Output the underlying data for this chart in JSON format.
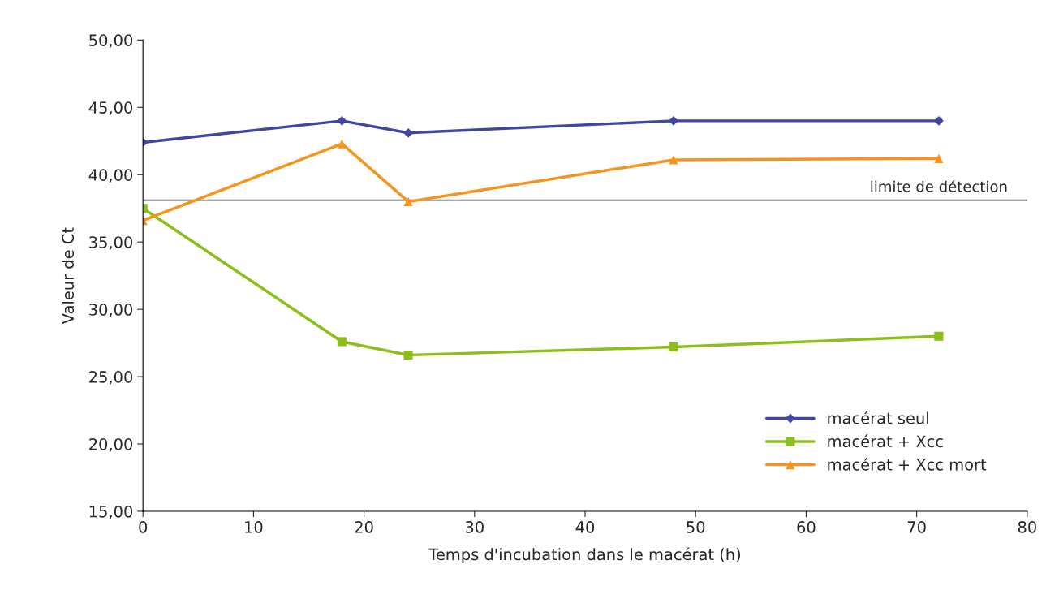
{
  "chart_data": {
    "type": "line",
    "xlabel": "Temps d'incubation dans le macérat (h)",
    "ylabel": "Valeur de Ct",
    "x": [
      0,
      18,
      24,
      48,
      72
    ],
    "series": [
      {
        "name": "macérat seul",
        "color": "#3f48a0",
        "marker": "diamond",
        "values": [
          42.4,
          44.0,
          43.1,
          44.0,
          44.0
        ]
      },
      {
        "name": "macérat + Xcc",
        "color": "#8dbf1a",
        "marker": "square",
        "values": [
          37.5,
          27.6,
          26.6,
          27.2,
          28.0
        ]
      },
      {
        "name": "macérat + Xcc mort",
        "color": "#f7941d",
        "marker": "triangle",
        "values": [
          36.6,
          42.3,
          38.0,
          41.1,
          41.2
        ]
      }
    ],
    "xlim": [
      0,
      80
    ],
    "xticks": [
      0,
      10,
      20,
      30,
      40,
      50,
      60,
      70,
      80
    ],
    "ylim": [
      15,
      50
    ],
    "yticks": [
      {
        "value": 15,
        "label": "15,00"
      },
      {
        "value": 20,
        "label": "20,00"
      },
      {
        "value": 25,
        "label": "25,00"
      },
      {
        "value": 30,
        "label": "30,00"
      },
      {
        "value": 35,
        "label": "35,00"
      },
      {
        "value": 40,
        "label": "40,00"
      },
      {
        "value": 45,
        "label": "45,00"
      },
      {
        "value": 50,
        "label": "50,00"
      }
    ],
    "ref_lines": [
      {
        "axis": "y",
        "value": 38.1,
        "label": "limite de détection",
        "color": "#8c8c8c"
      }
    ],
    "grid": false,
    "legend": "bottom right",
    "line_style": "solid"
  }
}
